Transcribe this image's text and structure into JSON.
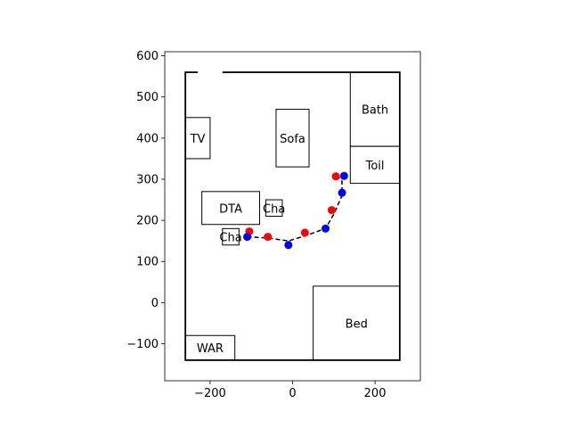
{
  "chart_data": {
    "type": "scatter",
    "xlim": [
      -310,
      310
    ],
    "ylim": [
      -190,
      610
    ],
    "xticks": [
      -200,
      0,
      200
    ],
    "yticks": [
      -100,
      0,
      100,
      200,
      300,
      400,
      500,
      600
    ],
    "grid": false,
    "room_outline": {
      "x1": -260,
      "y1": -140,
      "x2": 260,
      "y2": 560
    },
    "door_gap": {
      "x1": -230,
      "x2": -170,
      "y": 560
    },
    "furniture": [
      {
        "label": "Bath",
        "x1": 140,
        "y1": 380,
        "x2": 260,
        "y2": 560
      },
      {
        "label": "TV",
        "x1": -260,
        "y1": 350,
        "x2": -200,
        "y2": 450
      },
      {
        "label": "Sofa",
        "x1": -40,
        "y1": 330,
        "x2": 40,
        "y2": 470
      },
      {
        "label": "Toil",
        "x1": 140,
        "y1": 290,
        "x2": 260,
        "y2": 380
      },
      {
        "label": "DTA",
        "x1": -220,
        "y1": 190,
        "x2": -80,
        "y2": 270
      },
      {
        "label": "Cha",
        "x1": -65,
        "y1": 210,
        "x2": -25,
        "y2": 250
      },
      {
        "label": "Cha",
        "x1": -170,
        "y1": 140,
        "x2": -130,
        "y2": 180
      },
      {
        "label": "Bed",
        "x1": 50,
        "y1": -140,
        "x2": 260,
        "y2": 40
      },
      {
        "label": "WAR",
        "x1": -260,
        "y1": -140,
        "x2": -140,
        "y2": -80
      }
    ],
    "path": {
      "x": [
        -110,
        -60,
        -10,
        30,
        80,
        100,
        120,
        120,
        110
      ],
      "y": [
        160,
        157,
        150,
        162,
        180,
        215,
        260,
        295,
        308
      ]
    },
    "series": [
      {
        "color": "#ff0000",
        "x": [
          -105,
          -60,
          30,
          95,
          105
        ],
        "y": [
          173,
          160,
          170,
          225,
          307
        ]
      },
      {
        "color": "#0000ff",
        "x": [
          -110,
          -10,
          80,
          120,
          125
        ],
        "y": [
          160,
          140,
          180,
          267,
          308
        ]
      }
    ]
  }
}
